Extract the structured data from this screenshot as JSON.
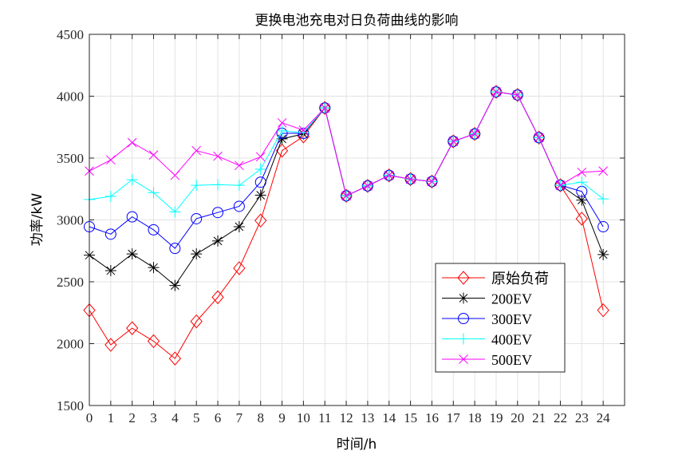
{
  "chart_data": {
    "type": "line",
    "title": "更换电池充电对日负荷曲线的影响",
    "xlabel": "时间/h",
    "ylabel": "功率/kW",
    "xlim": [
      0,
      25
    ],
    "ylim": [
      1500,
      4500
    ],
    "xticks": [
      0,
      1,
      2,
      3,
      4,
      5,
      6,
      7,
      8,
      9,
      10,
      11,
      12,
      13,
      14,
      15,
      16,
      17,
      18,
      19,
      20,
      21,
      22,
      23,
      24
    ],
    "yticks": [
      1500,
      2000,
      2500,
      3000,
      3500,
      4000,
      4500
    ],
    "grid": true,
    "legend_position": "bottom-right",
    "x": [
      0,
      1,
      2,
      3,
      4,
      5,
      6,
      7,
      8,
      9,
      10,
      11,
      12,
      13,
      14,
      15,
      16,
      17,
      18,
      19,
      20,
      21,
      22,
      23,
      24
    ],
    "series": [
      {
        "name": "原始负荷",
        "color": "#ff0000",
        "marker": "diamond",
        "values": [
          2270,
          1990,
          2125,
          2020,
          1880,
          2180,
          2375,
          2610,
          2995,
          3560,
          3675,
          3905,
          3195,
          3275,
          3360,
          3330,
          3310,
          3635,
          3695,
          4035,
          4010,
          3665,
          3280,
          3010,
          2270
        ]
      },
      {
        "name": "200EV",
        "color": "#000000",
        "marker": "asterisk",
        "values": [
          2715,
          2590,
          2725,
          2615,
          2470,
          2725,
          2830,
          2945,
          3200,
          3655,
          3695,
          3905,
          3195,
          3275,
          3360,
          3330,
          3310,
          3635,
          3695,
          4035,
          4010,
          3665,
          3280,
          3160,
          2720
        ]
      },
      {
        "name": "300EV",
        "color": "#0000ff",
        "marker": "circle",
        "values": [
          2945,
          2885,
          3025,
          2920,
          2770,
          3010,
          3060,
          3110,
          3305,
          3700,
          3700,
          3905,
          3195,
          3275,
          3360,
          3330,
          3310,
          3635,
          3695,
          4035,
          4010,
          3665,
          3280,
          3230,
          2945
        ]
      },
      {
        "name": "400EV",
        "color": "#00ffff",
        "marker": "plus",
        "values": [
          3165,
          3190,
          3325,
          3220,
          3065,
          3280,
          3285,
          3280,
          3410,
          3720,
          3705,
          3905,
          3195,
          3275,
          3360,
          3330,
          3310,
          3635,
          3695,
          4035,
          4010,
          3665,
          3280,
          3305,
          3170
        ]
      },
      {
        "name": "500EV",
        "color": "#ff00ff",
        "marker": "x",
        "values": [
          3395,
          3485,
          3625,
          3525,
          3360,
          3560,
          3515,
          3440,
          3510,
          3785,
          3725,
          3905,
          3195,
          3275,
          3360,
          3330,
          3310,
          3635,
          3695,
          4035,
          4010,
          3665,
          3280,
          3385,
          3395
        ]
      }
    ]
  }
}
